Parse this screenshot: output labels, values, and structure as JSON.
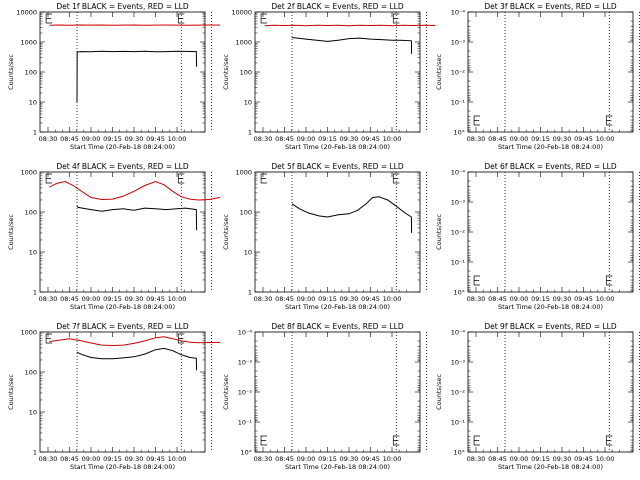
{
  "chart_data": [
    {
      "type": "line",
      "title": "Det 1f BLACK = Events, RED = LLD",
      "xlabel": "Start Time (20-Feb-18 08:24:00)",
      "ylabel": "Counts/sec",
      "x_tick_labels": [
        "08:30",
        "08:45",
        "09:00",
        "09:15",
        "09:30",
        "09:45",
        "10:00"
      ],
      "y_tick_labels": [
        "1",
        "10",
        "100",
        "1000",
        "10000"
      ],
      "ylim": [
        1,
        10000
      ],
      "y_scale": "log",
      "series": [
        {
          "color": "#cc0000",
          "x": [
            0.07,
            0.5,
            1.0,
            1.5,
            2.0,
            2.5,
            3.0,
            3.5,
            4.0,
            4.5,
            5.0,
            5.5,
            6.0,
            6.5,
            7.0,
            7.5,
            8.0
          ],
          "values": [
            3600,
            3700,
            3600,
            3700,
            3650,
            3700,
            3600,
            3650,
            3700,
            3600,
            3650,
            3700,
            3650,
            3600,
            3650,
            3700,
            3650
          ]
        },
        {
          "color": "#000000",
          "x": [
            1.35,
            1.36,
            1.5,
            2.0,
            2.5,
            3.0,
            3.5,
            4.0,
            4.5,
            5.0,
            5.5,
            6.0,
            6.4,
            6.9,
            6.91
          ],
          "values": [
            10,
            460,
            480,
            470,
            490,
            480,
            485,
            480,
            490,
            475,
            480,
            490,
            485,
            480,
            150
          ]
        }
      ]
    },
    {
      "type": "line",
      "title": "Det 2f BLACK = Events, RED = LLD",
      "xlabel": "Start Time (20-Feb-18 08:24:00)",
      "ylabel": "Counts/sec",
      "x_tick_labels": [
        "08:30",
        "08:45",
        "09:00",
        "09:15",
        "09:30",
        "09:45",
        "10:00"
      ],
      "y_tick_labels": [
        "1",
        "10",
        "100",
        "1000",
        "10000"
      ],
      "ylim": [
        1,
        10000
      ],
      "y_scale": "log",
      "series": [
        {
          "color": "#cc0000",
          "x": [
            0.07,
            0.5,
            1.0,
            1.5,
            2.0,
            2.5,
            3.0,
            3.5,
            4.0,
            4.5,
            5.0,
            5.5,
            6.0,
            6.5,
            7.0,
            7.5,
            8.0
          ],
          "values": [
            3500,
            3600,
            3550,
            3600,
            3500,
            3600,
            3550,
            3600,
            3500,
            3600,
            3550,
            3600,
            3500,
            3600,
            3550,
            3600,
            3550
          ]
        },
        {
          "color": "#000000",
          "x": [
            1.35,
            1.6,
            2.0,
            2.5,
            3.0,
            3.5,
            4.0,
            4.5,
            5.0,
            5.5,
            6.0,
            6.4,
            6.9,
            6.91
          ],
          "values": [
            1400,
            1350,
            1250,
            1150,
            1050,
            1150,
            1300,
            1350,
            1250,
            1200,
            1150,
            1150,
            1100,
            400
          ]
        }
      ]
    },
    {
      "type": "line",
      "title": "Det 3f BLACK = Events, RED = LLD",
      "xlabel": "Start Time (20-Feb-18 08:24:00)",
      "ylabel": "Counts/sec",
      "x_tick_labels": [
        "08:30",
        "08:45",
        "09:00",
        "09:15",
        "09:30",
        "09:45",
        "10:00"
      ],
      "y_tick_labels": [
        "10°",
        "10⁻¹",
        "10⁻²",
        "10⁻³",
        "10⁻⁴"
      ],
      "ylim": [
        1,
        0.0001
      ],
      "y_scale": "log",
      "series": []
    },
    {
      "type": "line",
      "title": "Det 4f BLACK = Events, RED = LLD",
      "xlabel": "Start Time (20-Feb-18 08:24:00)",
      "ylabel": "Counts/sec",
      "x_tick_labels": [
        "08:30",
        "08:45",
        "09:00",
        "09:15",
        "09:30",
        "09:45",
        "10:00"
      ],
      "y_tick_labels": [
        "1",
        "10",
        "100",
        "1000"
      ],
      "ylim": [
        1,
        1000
      ],
      "y_scale": "log",
      "series": [
        {
          "color": "#cc0000",
          "x": [
            0.07,
            0.4,
            0.8,
            1.2,
            1.6,
            2.0,
            2.5,
            3.0,
            3.5,
            4.0,
            4.5,
            5.0,
            5.4,
            5.8,
            6.2,
            6.6,
            7.0,
            7.5,
            8.0
          ],
          "values": [
            420,
            520,
            580,
            450,
            320,
            230,
            205,
            210,
            250,
            330,
            460,
            580,
            480,
            330,
            240,
            210,
            200,
            205,
            230
          ]
        },
        {
          "color": "#000000",
          "x": [
            1.35,
            1.4,
            2.0,
            2.5,
            3.0,
            3.5,
            4.0,
            4.5,
            5.0,
            5.5,
            6.0,
            6.4,
            6.9,
            6.91
          ],
          "values": [
            140,
            130,
            115,
            105,
            115,
            120,
            110,
            125,
            120,
            115,
            120,
            125,
            115,
            35
          ]
        }
      ]
    },
    {
      "type": "line",
      "title": "Det 5f BLACK = Events, RED = LLD",
      "xlabel": "Start Time (20-Feb-18 08:24:00)",
      "ylabel": "Counts/sec",
      "x_tick_labels": [
        "08:30",
        "08:45",
        "09:00",
        "09:15",
        "09:30",
        "09:45",
        "10:00"
      ],
      "y_tick_labels": [
        "1",
        "10",
        "100",
        "1000"
      ],
      "ylim": [
        1,
        1000
      ],
      "y_scale": "log",
      "series": [
        {
          "color": "#000000",
          "x": [
            1.35,
            1.7,
            2.1,
            2.6,
            3.0,
            3.5,
            4.0,
            4.4,
            4.8,
            5.1,
            5.4,
            5.8,
            6.2,
            6.6,
            6.9,
            6.91
          ],
          "values": [
            160,
            120,
            95,
            80,
            75,
            85,
            90,
            110,
            160,
            230,
            240,
            200,
            140,
            95,
            75,
            30
          ]
        }
      ]
    },
    {
      "type": "line",
      "title": "Det 6f BLACK = Events, RED = LLD",
      "xlabel": "Start Time (20-Feb-18 08:24:00)",
      "ylabel": "Counts/sec",
      "x_tick_labels": [
        "08:30",
        "08:45",
        "09:00",
        "09:15",
        "09:30",
        "09:45",
        "10:00"
      ],
      "y_tick_labels": [
        "10°",
        "10⁻¹",
        "10⁻²",
        "10⁻³",
        "10⁻⁴"
      ],
      "ylim": [
        1,
        0.0001
      ],
      "y_scale": "log",
      "series": []
    },
    {
      "type": "line",
      "title": "Det 7f BLACK = Events, RED = LLD",
      "xlabel": "Start Time (20-Feb-18 08:24:00)",
      "ylabel": "Counts/sec",
      "x_tick_labels": [
        "08:30",
        "08:45",
        "09:00",
        "09:15",
        "09:30",
        "09:45",
        "10:00"
      ],
      "y_tick_labels": [
        "1",
        "10",
        "100",
        "1000"
      ],
      "ylim": [
        1,
        1000
      ],
      "y_scale": "log",
      "series": [
        {
          "color": "#cc0000",
          "x": [
            0.07,
            0.5,
            1.0,
            1.5,
            2.0,
            2.5,
            3.0,
            3.5,
            4.0,
            4.5,
            5.0,
            5.4,
            5.8,
            6.2,
            6.6,
            7.0,
            7.5,
            8.0
          ],
          "values": [
            580,
            620,
            680,
            610,
            530,
            470,
            460,
            470,
            520,
            600,
            720,
            760,
            680,
            600,
            560,
            540,
            545,
            550
          ]
        },
        {
          "color": "#000000",
          "x": [
            1.35,
            1.6,
            2.0,
            2.5,
            3.0,
            3.5,
            4.0,
            4.5,
            5.0,
            5.4,
            5.8,
            6.2,
            6.6,
            6.9,
            6.91
          ],
          "values": [
            310,
            270,
            230,
            215,
            215,
            225,
            240,
            280,
            360,
            390,
            340,
            270,
            230,
            220,
            110
          ]
        }
      ]
    },
    {
      "type": "line",
      "title": "Det 8f BLACK = Events, RED = LLD",
      "xlabel": "Start Time (20-Feb-18 08:24:00)",
      "ylabel": "Counts/sec",
      "x_tick_labels": [
        "08:30",
        "08:45",
        "09:00",
        "09:15",
        "09:30",
        "09:45",
        "10:00"
      ],
      "y_tick_labels": [
        "10°",
        "10⁻¹",
        "10⁻²",
        "10⁻³",
        "10⁻⁴"
      ],
      "ylim": [
        1,
        0.0001
      ],
      "y_scale": "log",
      "series": []
    },
    {
      "type": "line",
      "title": "Det 9f BLACK = Events, RED = LLD",
      "xlabel": "Start Time (20-Feb-18 08:24:00)",
      "ylabel": "Counts/sec",
      "x_tick_labels": [
        "08:30",
        "08:45",
        "09:00",
        "09:15",
        "09:30",
        "09:45",
        "10:00"
      ],
      "y_tick_labels": [
        "10°",
        "10⁻¹",
        "10⁻²",
        "10⁻³",
        "10⁻⁴"
      ],
      "ylim": [
        1,
        0.0001
      ],
      "y_scale": "log",
      "series": []
    }
  ]
}
